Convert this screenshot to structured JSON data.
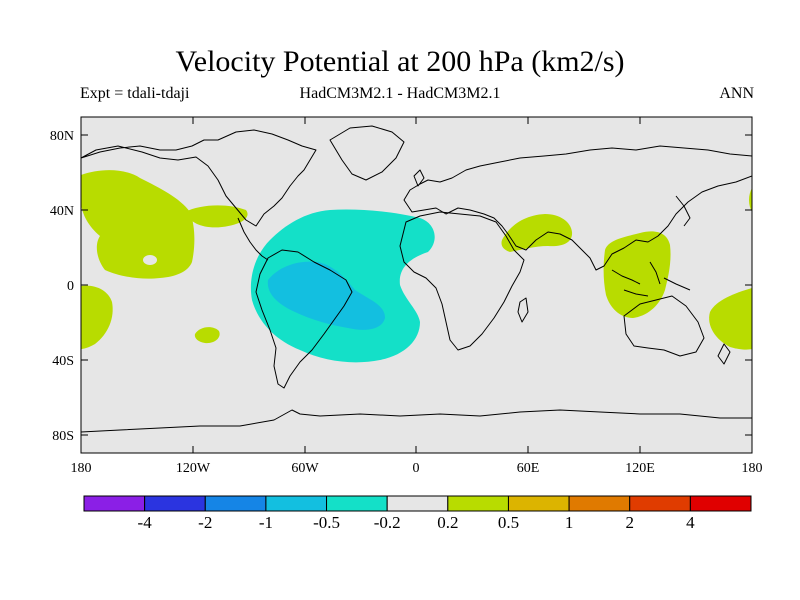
{
  "title": "Velocity Potential at 200 hPa (km2/s)",
  "subtitle_left": "Expt = tdali-tdaji",
  "subtitle_center": "HadCM3M2.1 - HadCM3M2.1",
  "subtitle_right": "ANN",
  "axes": {
    "lat_ticks": [
      "80N",
      "40N",
      "0",
      "40S",
      "80S"
    ],
    "lon_ticks": [
      "180",
      "120W",
      "60W",
      "0",
      "60E",
      "120E",
      "180"
    ]
  },
  "colorbar": {
    "colors": [
      "#8b1fe6",
      "#2b34e0",
      "#1585e6",
      "#13bfe0",
      "#14e0c8",
      "#e6e6e6",
      "#b8dc00",
      "#dcb400",
      "#e07a00",
      "#e03c00",
      "#e00000"
    ],
    "labels": [
      "-4",
      "-2",
      "-1",
      "-0.5",
      "-0.2",
      "0.2",
      "0.5",
      "1",
      "2",
      "4"
    ]
  },
  "colors": {
    "ocean_background": "#e6e6e6",
    "positive_region": "#b8dc00",
    "negative_region": "#14e0c8",
    "strong_negative_region": "#13bfe0"
  }
}
